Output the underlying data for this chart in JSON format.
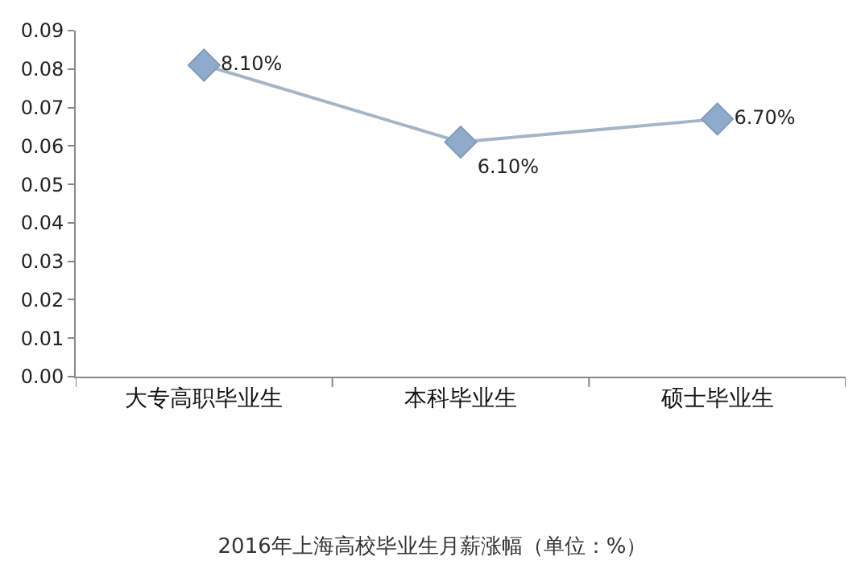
{
  "chart_data": {
    "type": "line",
    "title": "2016年上海高校毕业生月薪涨幅（单位：%）",
    "categories": [
      "大专高职毕业生",
      "本科毕业生",
      "硕士毕业生"
    ],
    "series": [
      {
        "color": "#8eabcb",
        "values": [
          0.081,
          0.061,
          0.067
        ],
        "value_labels": [
          "8.10%",
          "6.10%",
          "6.70%"
        ]
      }
    ],
    "ylim": [
      0,
      0.09
    ],
    "yticks": [
      {
        "value": 0,
        "label": "0.00"
      },
      {
        "value": 0.01,
        "label": "0.01"
      },
      {
        "value": 0.02,
        "label": "0.02"
      },
      {
        "value": 0.03,
        "label": "0.03"
      },
      {
        "value": 0.04,
        "label": "0.04"
      },
      {
        "value": 0.05,
        "label": "0.05"
      },
      {
        "value": 0.06,
        "label": "0.06"
      },
      {
        "value": 0.07,
        "label": "0.07"
      },
      {
        "value": 0.08,
        "label": "0.08"
      },
      {
        "value": 0.09,
        "label": "0.09"
      }
    ],
    "legend": false,
    "marker": "diamond",
    "line_style": "solid"
  }
}
